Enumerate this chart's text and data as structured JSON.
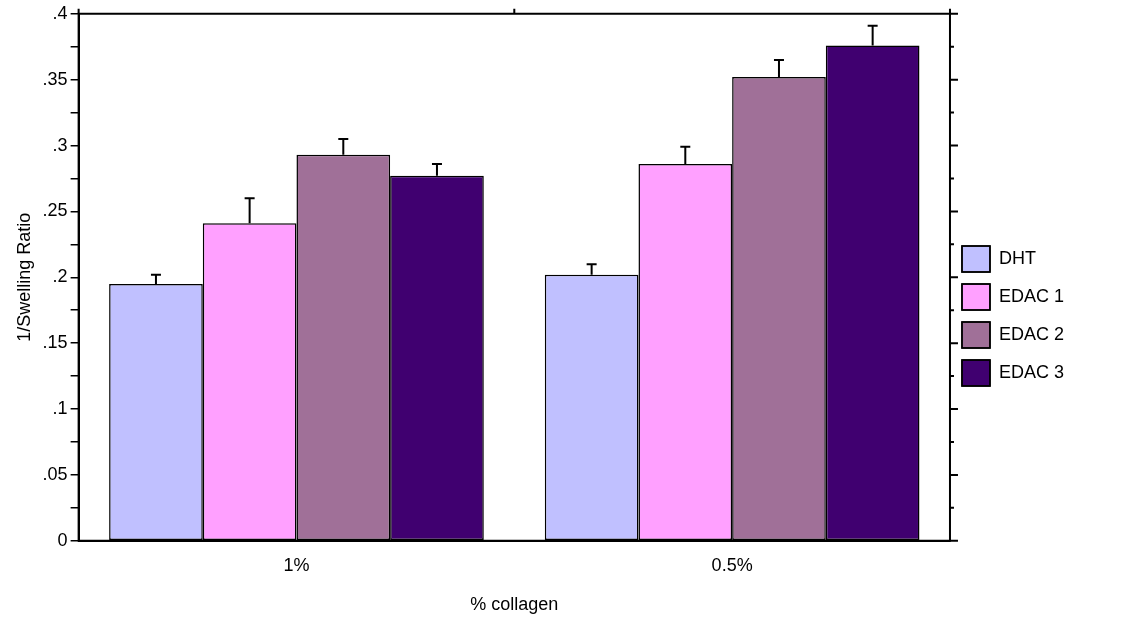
{
  "chart_data": {
    "type": "bar",
    "xlabel": "% collagen",
    "ylabel": "1/Swelling Ratio",
    "categories": [
      "1%",
      "0.5%"
    ],
    "series": [
      {
        "name": "DHT",
        "color": "#c0c0ff",
        "values": [
          0.195,
          0.202
        ],
        "errors": [
          0.007,
          0.008
        ]
      },
      {
        "name": "EDAC 1",
        "color": "#ffa0ff",
        "values": [
          0.241,
          0.286
        ],
        "errors": [
          0.019,
          0.013
        ]
      },
      {
        "name": "EDAC 2",
        "color": "#a07098",
        "values": [
          0.293,
          0.352
        ],
        "errors": [
          0.012,
          0.013
        ]
      },
      {
        "name": "EDAC 3",
        "color": "#400070",
        "values": [
          0.277,
          0.376
        ],
        "errors": [
          0.009,
          0.015
        ]
      }
    ],
    "ylim": [
      0,
      0.4
    ],
    "yticks": [
      0,
      {
        "value": 0.025,
        "label": null
      },
      {
        "value": 0.05,
        "label": ".05"
      },
      {
        "value": 0.075,
        "label": null
      },
      {
        "value": 0.1,
        "label": ".1"
      },
      {
        "value": 0.125,
        "label": null
      },
      {
        "value": 0.15,
        "label": ".15"
      },
      {
        "value": 0.175,
        "label": null
      },
      {
        "value": 0.2,
        "label": ".2"
      },
      {
        "value": 0.225,
        "label": null
      },
      {
        "value": 0.25,
        "label": ".25"
      },
      {
        "value": 0.275,
        "label": null
      },
      {
        "value": 0.3,
        "label": ".3"
      },
      {
        "value": 0.325,
        "label": null
      },
      {
        "value": 0.35,
        "label": ".35"
      },
      {
        "value": 0.375,
        "label": null
      },
      {
        "value": 0.4,
        "label": ".4"
      }
    ],
    "grid": false,
    "legend": "right"
  }
}
